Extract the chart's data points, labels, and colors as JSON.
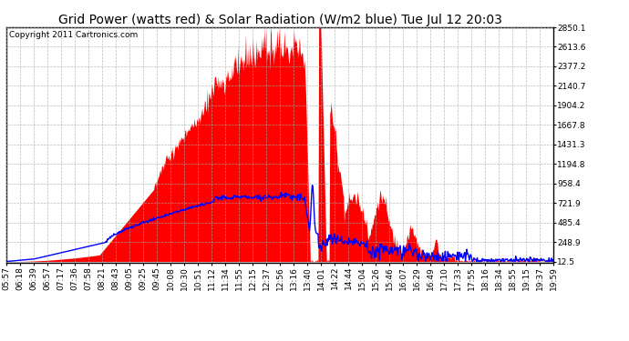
{
  "title": "Grid Power (watts red) & Solar Radiation (W/m2 blue) Tue Jul 12 20:03",
  "copyright": "Copyright 2011 Cartronics.com",
  "bg_color": "#ffffff",
  "plot_bg_color": "#ffffff",
  "grid_color": "#aaaaaa",
  "fill_color": "#ff0000",
  "line_color": "#0000ff",
  "yticks": [
    12.5,
    248.9,
    485.4,
    721.9,
    958.4,
    1194.8,
    1431.3,
    1667.8,
    1904.2,
    2140.7,
    2377.2,
    2613.6,
    2850.1
  ],
  "xlabels": [
    "05:57",
    "06:18",
    "06:39",
    "06:57",
    "07:17",
    "07:36",
    "07:58",
    "08:21",
    "08:43",
    "09:05",
    "09:25",
    "09:45",
    "10:08",
    "10:30",
    "10:51",
    "11:12",
    "11:34",
    "11:55",
    "12:15",
    "12:37",
    "12:56",
    "13:16",
    "13:40",
    "14:01",
    "14:22",
    "14:44",
    "15:04",
    "15:26",
    "15:46",
    "16:07",
    "16:29",
    "16:49",
    "17:10",
    "17:33",
    "17:55",
    "18:16",
    "18:34",
    "18:55",
    "19:15",
    "19:37",
    "19:59"
  ],
  "ymin": 0,
  "ymax": 2850.1,
  "title_fontsize": 10,
  "copyright_fontsize": 6.5,
  "tick_fontsize": 6.5
}
